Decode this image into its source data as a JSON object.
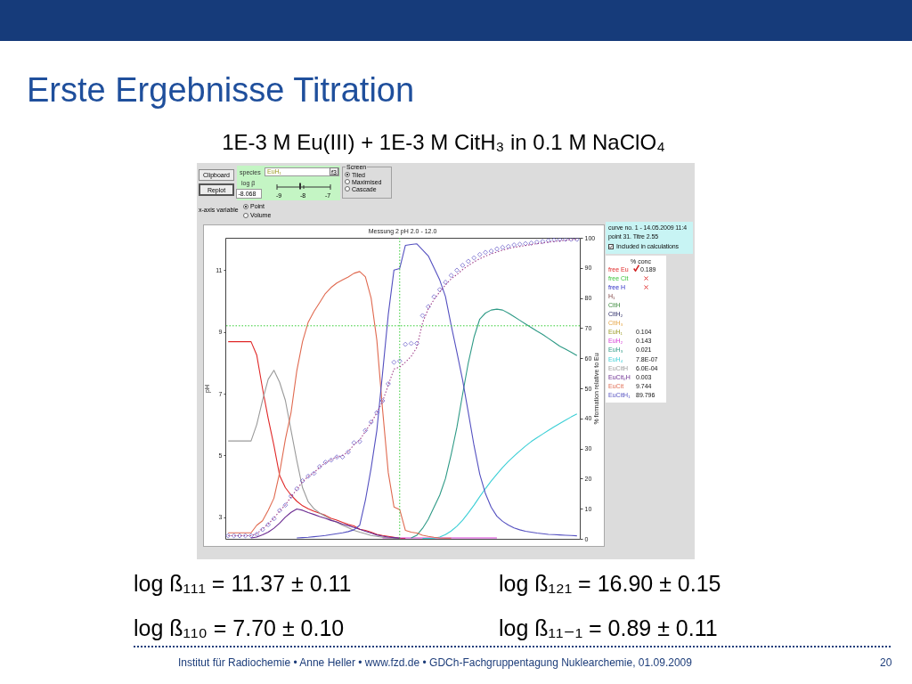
{
  "chart_data": {
    "type": "line",
    "title": "Erste Ergebnisse Titration",
    "subtitle": "1E-3 M Eu(III) + 1E-3 M CitH₃ in 0.1 M NaClO₄",
    "ylabel": "pH",
    "y2label": "% formation relative to Eu",
    "categories": [
      null,
      null,
      null,
      null,
      null,
      null,
      null,
      null,
      null,
      null,
      null,
      null,
      null,
      null,
      null,
      null,
      null,
      null,
      null,
      null,
      null,
      null,
      null,
      null,
      null,
      null,
      null,
      null,
      null,
      null,
      null,
      null,
      null,
      null,
      null,
      null,
      null,
      null,
      null,
      null,
      null,
      null,
      null,
      null,
      null,
      null,
      null,
      null,
      null,
      null,
      null,
      null,
      null,
      null,
      null,
      null,
      null,
      null,
      null,
      null,
      null,
      null
    ],
    "ylim": [
      2.3,
      12.05
    ],
    "yticks": [
      3,
      5,
      7,
      9,
      11
    ],
    "y2lim": [
      0,
      100
    ],
    "y2ticks": [
      0,
      10,
      20,
      30,
      40,
      50,
      60,
      70,
      80,
      90,
      100
    ],
    "legend": "right",
    "series": [
      {
        "name": "free Eu",
        "color": "#e02828",
        "axis": "y2",
        "values": [
          65.5,
          65.5,
          65.5,
          65.5,
          65.5,
          61,
          50,
          40,
          31,
          21,
          17,
          14.5,
          12.5,
          11,
          10,
          9.2,
          8.5,
          7.8,
          6.8,
          6.2,
          5.5,
          4.8,
          4.3,
          3.2,
          2.8,
          2.2,
          1.5,
          1.1,
          0.8,
          0.5,
          0.2,
          0.1,
          null,
          null,
          null,
          null,
          null,
          null,
          null,
          null,
          null,
          null,
          null,
          null,
          null,
          null,
          null,
          null,
          null,
          null,
          null,
          null,
          null,
          null,
          null,
          null,
          null,
          null,
          null,
          null,
          null,
          null
        ]
      },
      {
        "name": "free Cit",
        "color": "#3cc43c",
        "values": [
          null,
          null,
          null,
          null,
          null,
          null,
          null,
          null,
          null,
          null,
          null,
          null,
          null,
          null,
          null,
          null,
          null,
          null,
          null,
          null,
          null,
          null,
          null,
          null,
          null,
          null,
          null,
          null,
          null,
          null,
          null,
          null,
          null,
          null,
          null,
          null,
          null,
          null,
          null,
          null,
          null,
          null,
          null,
          null,
          null,
          null,
          null,
          null,
          null,
          null,
          null,
          null,
          null,
          null,
          null,
          null,
          null,
          null,
          null,
          null,
          null,
          null
        ]
      },
      {
        "name": "free H",
        "color": "#2a2ac4",
        "values": [
          null,
          null,
          null,
          null,
          null,
          null,
          null,
          null,
          null,
          null,
          null,
          null,
          null,
          null,
          null,
          null,
          null,
          null,
          null,
          null,
          null,
          null,
          null,
          null,
          null,
          null,
          null,
          null,
          null,
          null,
          null,
          null,
          null,
          null,
          null,
          null,
          null,
          null,
          null,
          null,
          null,
          null,
          null,
          null,
          null,
          null,
          null,
          null,
          null,
          null,
          null,
          null,
          null,
          null,
          null,
          null,
          null,
          null,
          null,
          null,
          null,
          null
        ]
      },
      {
        "name": "H₁",
        "color": "#7a3a3a",
        "values": [
          null,
          null,
          null,
          null,
          null,
          null,
          null,
          null,
          null,
          null,
          null,
          null,
          null,
          null,
          null,
          null,
          null,
          null,
          null,
          null,
          null,
          null,
          null,
          null,
          null,
          null,
          null,
          null,
          null,
          null,
          null,
          null,
          null,
          null,
          null,
          null,
          null,
          null,
          null,
          null,
          null,
          null,
          null,
          null,
          null,
          null,
          null,
          null,
          null,
          null,
          null,
          null,
          null,
          null,
          null,
          null,
          null,
          null,
          null,
          null,
          null,
          null
        ]
      },
      {
        "name": "CitH",
        "color": "#3c8a3c",
        "values": [
          null,
          null,
          null,
          null,
          null,
          null,
          null,
          null,
          null,
          null,
          null,
          null,
          null,
          null,
          null,
          null,
          null,
          null,
          null,
          null,
          null,
          null,
          null,
          null,
          null,
          null,
          null,
          null,
          null,
          null,
          null,
          null,
          null,
          null,
          null,
          null,
          null,
          null,
          null,
          null,
          null,
          null,
          null,
          null,
          null,
          null,
          null,
          null,
          null,
          null,
          null,
          null,
          null,
          null,
          null,
          null,
          null,
          null,
          null,
          null,
          null,
          null
        ]
      },
      {
        "name": "CitH₂",
        "color": "#2a2a66",
        "values": [
          null,
          null,
          null,
          null,
          null,
          null,
          null,
          null,
          null,
          null,
          null,
          null,
          null,
          null,
          null,
          null,
          null,
          null,
          null,
          null,
          null,
          null,
          null,
          null,
          null,
          null,
          null,
          null,
          null,
          null,
          null,
          null,
          null,
          null,
          null,
          null,
          null,
          null,
          null,
          null,
          null,
          null,
          null,
          null,
          null,
          null,
          null,
          null,
          null,
          null,
          null,
          null,
          null,
          null,
          null,
          null,
          null,
          null,
          null,
          null,
          null,
          null
        ]
      },
      {
        "name": "CitH₃",
        "color": "#e6a646",
        "values": [
          null,
          null,
          null,
          null,
          null,
          null,
          null,
          null,
          null,
          null,
          null,
          null,
          null,
          null,
          null,
          null,
          null,
          null,
          null,
          null,
          null,
          null,
          null,
          null,
          null,
          null,
          null,
          null,
          null,
          null,
          null,
          null,
          null,
          null,
          null,
          null,
          null,
          null,
          null,
          null,
          null,
          null,
          null,
          null,
          null,
          null,
          null,
          null,
          null,
          null,
          null,
          null,
          null,
          null,
          null,
          null,
          null,
          null,
          null,
          null,
          null,
          null
        ]
      },
      {
        "name": "EuH₁",
        "color": "#9a9a22",
        "values": [
          null,
          null,
          null,
          null,
          null,
          null,
          null,
          null,
          null,
          null,
          null,
          null,
          null,
          null,
          null,
          null,
          null,
          null,
          null,
          null,
          null,
          null,
          null,
          null,
          null,
          null,
          null,
          null,
          null,
          null,
          null,
          null,
          null,
          null,
          null,
          null,
          null,
          null,
          null,
          null,
          null,
          null,
          null,
          null,
          null,
          null,
          null,
          null,
          null,
          null,
          null,
          null,
          null,
          null,
          null,
          null,
          null,
          null,
          null,
          null,
          null,
          null
        ]
      },
      {
        "name": "EuH₂",
        "color": "#d63ad6",
        "axis": "y2",
        "values": [
          null,
          null,
          null,
          null,
          null,
          null,
          null,
          null,
          null,
          null,
          null,
          null,
          null,
          null,
          null,
          null,
          null,
          null,
          null,
          null,
          null,
          null,
          null,
          null,
          null,
          null,
          null,
          0.3,
          0.3,
          0.3,
          0.3,
          0.3,
          0.3,
          0.3,
          0.3,
          0.3,
          0.3,
          0.3,
          0.3,
          0.3,
          0.3,
          0.3,
          0.3,
          0.3,
          0.3,
          0.3,
          0.3,
          0.3,
          null,
          null,
          null,
          null,
          null,
          null,
          null,
          null,
          null,
          null,
          null,
          null,
          null,
          null
        ]
      },
      {
        "name": "EuH₃",
        "color": "#2e9a86",
        "axis": "y2",
        "values": [
          null,
          null,
          null,
          null,
          null,
          null,
          null,
          null,
          null,
          null,
          null,
          null,
          null,
          null,
          null,
          null,
          null,
          null,
          null,
          null,
          null,
          null,
          null,
          null,
          null,
          null,
          null,
          null,
          null,
          null,
          null,
          null,
          0.3,
          1.2,
          3.5,
          6.5,
          10.5,
          14.5,
          20,
          28,
          37,
          48,
          58.5,
          67,
          73,
          75,
          76,
          76.3,
          76,
          75,
          73.8,
          72.6,
          71.4,
          70.2,
          69,
          67.9,
          66.6,
          65.3,
          64,
          63,
          62,
          60.9
        ]
      },
      {
        "name": "EuH₄",
        "color": "#3ccfd6",
        "axis": "y2",
        "values": [
          null,
          null,
          null,
          null,
          null,
          null,
          null,
          null,
          null,
          null,
          null,
          null,
          null,
          null,
          null,
          null,
          null,
          null,
          null,
          null,
          null,
          null,
          null,
          null,
          null,
          null,
          null,
          null,
          null,
          null,
          null,
          null,
          null,
          null,
          0.1,
          0.1,
          0.2,
          0.6,
          1.4,
          2.6,
          4.2,
          6.2,
          8.6,
          11.2,
          14,
          16.7,
          19.2,
          21.5,
          23.7,
          25.7,
          27.5,
          29.2,
          30.8,
          32.3,
          33.6,
          34.8,
          36,
          37.2,
          38.3,
          39.4,
          40.5,
          41.5
        ]
      },
      {
        "name": "EuCitH",
        "color": "#9a9a9a",
        "axis": "y2",
        "values": [
          32.5,
          32.5,
          32.5,
          32.5,
          32.5,
          38,
          46,
          53,
          56,
          52,
          46,
          36,
          26,
          17,
          12.3,
          10,
          8.6,
          7.5,
          6.3,
          5.5,
          4.5,
          3.7,
          2.8,
          2.2,
          1.7,
          1.1,
          0.8,
          0.5,
          0.3,
          0.2,
          0,
          null,
          null,
          null,
          null,
          null,
          null,
          null,
          null,
          null,
          null,
          null,
          null,
          null,
          null,
          null,
          null,
          null,
          null,
          null,
          null,
          null,
          null,
          null,
          null,
          null,
          null,
          null,
          null,
          null,
          null,
          null
        ]
      },
      {
        "name": "EuCit₂H",
        "color": "#6a2a90",
        "axis": "y2",
        "values": [
          null,
          null,
          null,
          null,
          0.3,
          0.6,
          1.3,
          2.2,
          3.5,
          5.2,
          7.2,
          8.8,
          9.9,
          9.5,
          8.7,
          8.1,
          7.4,
          6.8,
          6.1,
          5.6,
          4.9,
          4.4,
          3.8,
          3.2,
          2.5,
          1.9,
          1.3,
          0.9,
          0.6,
          0.4,
          0.2,
          null,
          null,
          null,
          null,
          null,
          null,
          null,
          null,
          null,
          null,
          null,
          null,
          null,
          null,
          null,
          null,
          null,
          null,
          null,
          null,
          null,
          null,
          null,
          null,
          null,
          null,
          null,
          null,
          null,
          null,
          null
        ]
      },
      {
        "name": "EuCit",
        "color": "#e06a50",
        "axis": "y2",
        "values": [
          2,
          2,
          2,
          2,
          2,
          4.5,
          6,
          9.5,
          13.5,
          22,
          33,
          42,
          55.8,
          65.5,
          72,
          75.5,
          78.5,
          81.5,
          83.5,
          85,
          86,
          87,
          88.2,
          88.8,
          87,
          80,
          66,
          43,
          22,
          10.6,
          9.7,
          2.8,
          2.2,
          1.9,
          1.2,
          0.8,
          0.5,
          0.3,
          0.2,
          0.2,
          null,
          null,
          null,
          null,
          null,
          null,
          null,
          null,
          null,
          null,
          null,
          null,
          null,
          null,
          null,
          null,
          null,
          null,
          null,
          null,
          null,
          null
        ]
      },
      {
        "name": "EuCitH₁",
        "color": "#5450c0",
        "axis": "y2",
        "values": [
          null,
          null,
          null,
          null,
          null,
          null,
          null,
          null,
          null,
          null,
          null,
          null,
          0.3,
          0.4,
          0.5,
          0.7,
          0.9,
          1.1,
          1.4,
          1.7,
          2,
          2.4,
          3,
          4.5,
          12.8,
          23.5,
          36,
          55,
          74.5,
          89.3,
          89.8,
          97.5,
          97.8,
          98,
          96,
          94,
          90,
          86,
          80.5,
          71,
          62,
          52.8,
          42,
          31,
          21.5,
          15,
          10.5,
          7.5,
          5.8,
          4.6,
          3.6,
          3,
          2.5,
          2.2,
          1.9,
          1.7,
          1.5,
          1.4,
          1.3,
          1.2,
          1.1,
          1
        ]
      },
      {
        "type": "scatter",
        "marker": "diamond",
        "color": "#5b4fc4",
        "values": [
          2.4,
          2.4,
          2.4,
          2.4,
          2.4,
          2.45,
          2.6,
          2.76,
          2.95,
          3.22,
          3.39,
          3.68,
          3.92,
          4.18,
          4.33,
          4.42,
          4.64,
          4.78,
          4.85,
          4.95,
          4.95,
          5.11,
          5.41,
          5.45,
          5.81,
          6.08,
          6.39,
          6.77,
          7.32,
          8.02,
          8.06,
          8.6,
          8.63,
          8.63,
          9.53,
          9.82,
          10.14,
          10.37,
          10.61,
          10.83,
          11,
          11.16,
          11.29,
          11.4,
          11.51,
          11.58,
          11.62,
          11.69,
          11.74,
          11.77,
          11.82,
          11.84,
          11.86,
          11.88,
          11.91,
          11.93,
          11.96,
          11.98,
          11.99,
          12,
          12,
          12
        ]
      },
      {
        "type": "line",
        "line_style": "dotted",
        "color": "#a0408a",
        "values": [
          2.4,
          2.4,
          2.4,
          2.4,
          2.4,
          2.47,
          2.62,
          2.78,
          2.97,
          3.2,
          3.4,
          3.66,
          3.9,
          4.15,
          4.32,
          4.44,
          4.62,
          4.76,
          4.86,
          4.95,
          5,
          5.12,
          5.35,
          5.5,
          5.78,
          6.06,
          6.38,
          6.75,
          7.28,
          7.8,
          7.86,
          8.02,
          8.21,
          8.5,
          9.3,
          9.75,
          10.05,
          10.3,
          10.52,
          10.72,
          10.86,
          11.02,
          11.15,
          11.27,
          11.37,
          11.46,
          11.53,
          11.59,
          11.65,
          11.7,
          11.74,
          11.77,
          11.8,
          11.83,
          11.86,
          11.88,
          11.91,
          11.93,
          11.95,
          11.97,
          11.99,
          12
        ]
      }
    ],
    "ref_lines": [
      {
        "axis": "y",
        "value": 9.2,
        "color": "#33cc33",
        "line_style": "dotted"
      }
    ],
    "annotations": [
      "Messung 2 pH 2.0 - 12.0",
      "log ß₁₁₁ = 11.37 ± 0.11",
      "log ß₁₂₁ = 16.90 ± 0.15",
      "log ß₁₁₀ = 7.70 ± 0.10",
      "log ß₁₁₋₁ = 0.89 ± 0.11",
      "Institut für Radiochemie • Anne Heller • www.fzd.de • GDCh-Fachgruppentagung Nuklearchemie, 01.09.2009",
      "20",
      "curve no.  1 - 14.05.2009 11:4",
      "point 31.  Titre 2.55",
      "Included in calculations",
      "% conc",
      "0.189",
      "0.104",
      "0.143",
      "0.021",
      "7.8E-07",
      "6.0E-04",
      "0.003",
      "9.744",
      "89.796",
      "Clipboard",
      "Replot",
      "species",
      "EuH₁",
      "f3",
      "log β",
      "-8.068",
      "-9",
      "-8",
      "-7",
      "Screen",
      "Tiled",
      "Maximised",
      "Cascade",
      "x-axis variable",
      "Point",
      "Volume"
    ]
  }
}
